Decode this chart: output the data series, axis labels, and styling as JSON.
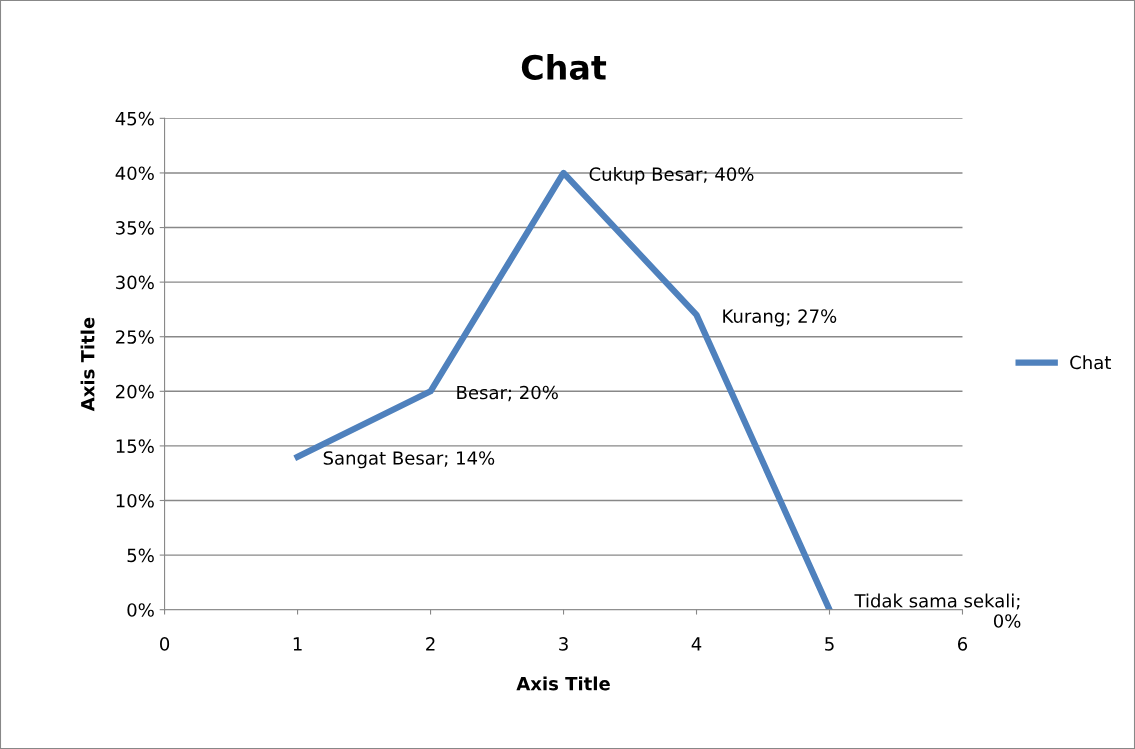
{
  "chart_data": {
    "type": "line",
    "title": "Chat",
    "xlabel": "Axis Title",
    "ylabel": "Axis Title",
    "x": [
      1,
      2,
      3,
      4,
      5
    ],
    "series": [
      {
        "name": "Chat",
        "color": "#4f81bd",
        "values": [
          14,
          20,
          40,
          27,
          0
        ]
      }
    ],
    "xlim": [
      0,
      6
    ],
    "xticks": [
      0,
      1,
      2,
      3,
      4,
      5,
      6
    ],
    "ylim": [
      0,
      45
    ],
    "yticks": [
      {
        "value": 0,
        "label": "0%"
      },
      {
        "value": 5,
        "label": "5%"
      },
      {
        "value": 10,
        "label": "10%"
      },
      {
        "value": 15,
        "label": "15%"
      },
      {
        "value": 20,
        "label": "20%"
      },
      {
        "value": 25,
        "label": "25%"
      },
      {
        "value": 30,
        "label": "30%"
      },
      {
        "value": 35,
        "label": "35%"
      },
      {
        "value": 40,
        "label": "40%"
      },
      {
        "value": 45,
        "label": "45%"
      }
    ],
    "annotations": [
      {
        "text": "Sangat Besar; 14%",
        "x": 1,
        "y": 14
      },
      {
        "text": "Besar; 20%",
        "x": 2,
        "y": 20
      },
      {
        "text": "Cukup Besar; 40%",
        "x": 3,
        "y": 40
      },
      {
        "text": "Kurang; 27%",
        "x": 4,
        "y": 27
      },
      {
        "text": "Tidak sama sekali;\n0%",
        "x": 5,
        "y": 0
      }
    ],
    "grid": "y",
    "legend": "right",
    "marker": "none",
    "line_style": "solid"
  }
}
